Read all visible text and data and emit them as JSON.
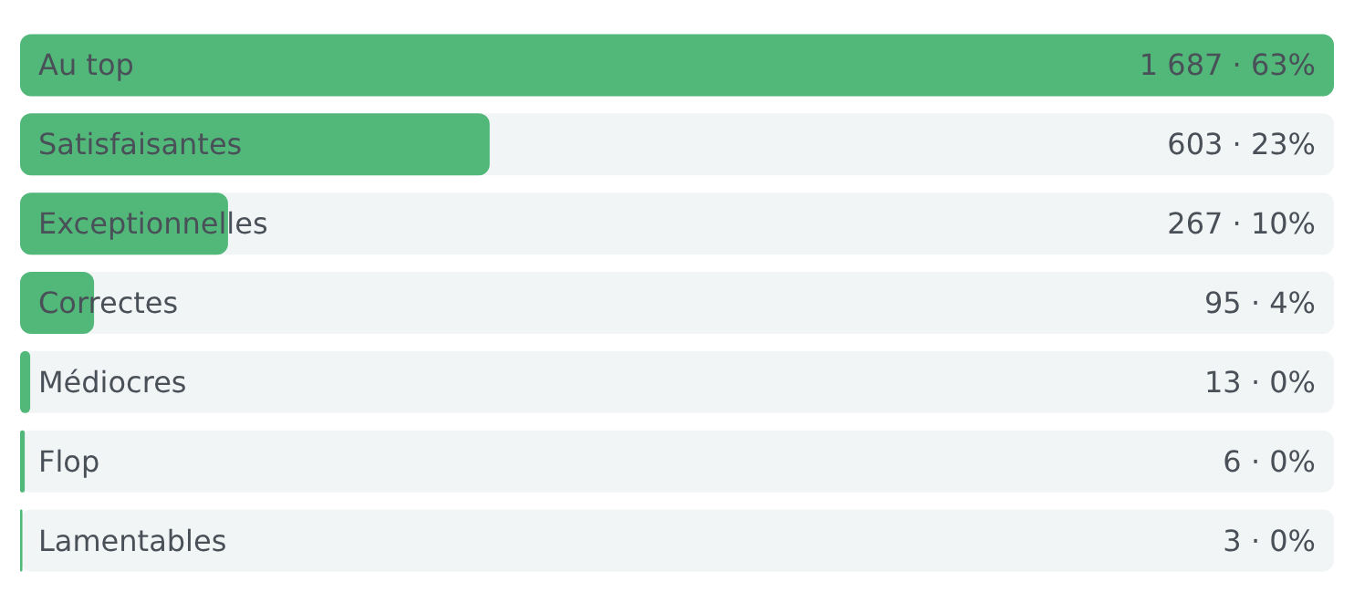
{
  "chart_data": {
    "type": "bar",
    "orientation": "horizontal",
    "categories": [
      "Au top",
      "Satisfaisantes",
      "Exceptionnelles",
      "Correctes",
      "Médiocres",
      "Flop",
      "Lamentables"
    ],
    "values": [
      1687,
      603,
      267,
      95,
      13,
      6,
      3
    ],
    "value_labels": [
      "1 687 · 63%",
      "603 · 23%",
      "267 · 10%",
      "95 · 4%",
      "13 · 0%",
      "6 · 0%",
      "3 · 0%"
    ],
    "color": "#52b87a"
  }
}
